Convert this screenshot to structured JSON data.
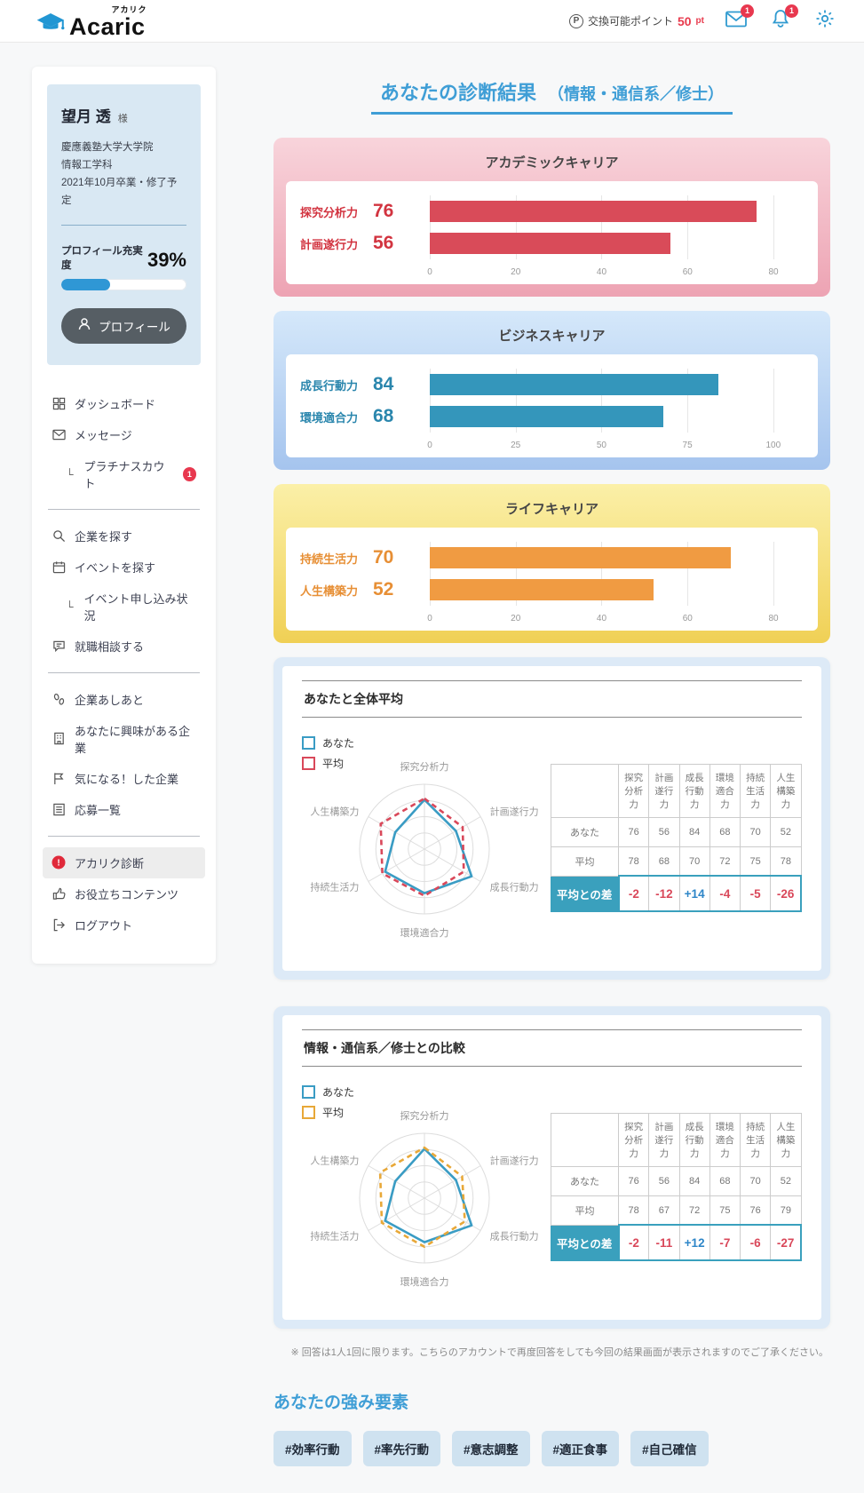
{
  "header": {
    "brand_name": "Acaric",
    "brand_kana": "アカリク",
    "points_label": "交換可能ポイント",
    "points_value": "50",
    "points_unit": "pt",
    "mail_badge": "1",
    "bell_badge": "1"
  },
  "sidebar": {
    "profile": {
      "name": "望月 透",
      "honorific": "様",
      "school_lines": [
        "慶應義塾大学大学院",
        "情報工学科",
        "2021年10月卒業・修了予定"
      ],
      "completion_label": "プロフィール充実度",
      "completion_text": "39%",
      "completion_percent": 39,
      "profile_button": "プロフィール"
    },
    "nav": [
      {
        "icon": "dashboard",
        "label": "ダッシュボード"
      },
      {
        "icon": "mail",
        "label": "メッセージ"
      },
      {
        "icon": "none",
        "label": "プラチナスカウト",
        "sub": true,
        "badge": "1"
      },
      {
        "divider": true
      },
      {
        "icon": "search",
        "label": "企業を探す"
      },
      {
        "icon": "calendar",
        "label": "イベントを探す"
      },
      {
        "icon": "none",
        "label": "イベント申し込み状況",
        "sub": true
      },
      {
        "icon": "chat",
        "label": "就職相談する"
      },
      {
        "divider": true
      },
      {
        "icon": "footprint",
        "label": "企業あしあと"
      },
      {
        "icon": "building",
        "label": "あなたに興味がある企業"
      },
      {
        "icon": "flag",
        "label": "気になる！した企業"
      },
      {
        "icon": "list",
        "label": "応募一覧"
      },
      {
        "divider": true
      },
      {
        "icon": "alert",
        "label": "アカリク診断",
        "active": true
      },
      {
        "icon": "thumb",
        "label": "お役立ちコンテンツ"
      },
      {
        "icon": "logout",
        "label": "ログアウト"
      }
    ]
  },
  "main": {
    "title": "あなたの診断結果",
    "title_suffix": "（情報・通信系／修士）",
    "note": "※ 回答は1人1回に限ります。こちらのアカウントで再度回答をしても今回の結果画面が表示されますのでご了承ください。",
    "strengths_title": "あなたの強み要素",
    "strength_tags": [
      "#効率行動",
      "#率先行動",
      "#意志調整",
      "#適正食事",
      "#自己確信"
    ]
  },
  "chart_data": [
    {
      "type": "bar",
      "title": "アカデミックキャリア",
      "categories": [
        "探究分析力",
        "計画遂行力"
      ],
      "values": [
        76,
        56
      ],
      "ticks": [
        0,
        20,
        40,
        60,
        80
      ],
      "xlim": [
        0,
        86.2
      ],
      "bar_color": "#d94b59",
      "label_color": "#d23440",
      "frame_top": "#f8d4db",
      "frame_bottom": "#eda3b3"
    },
    {
      "type": "bar",
      "title": "ビジネスキャリア",
      "categories": [
        "成長行動力",
        "環境適合力"
      ],
      "values": [
        84,
        68
      ],
      "ticks": [
        0,
        25,
        50,
        75,
        100
      ],
      "xlim": [
        0,
        107.8
      ],
      "bar_color": "#3496bb",
      "label_color": "#2a86ad",
      "frame_top": "#d5e8fa",
      "frame_bottom": "#a5c4ee"
    },
    {
      "type": "bar",
      "title": "ライフキャリア",
      "categories": [
        "持続生活力",
        "人生構築力"
      ],
      "values": [
        70,
        52
      ],
      "ticks": [
        0,
        20,
        40,
        60,
        80
      ],
      "xlim": [
        0,
        86.2
      ],
      "bar_color": "#f09b42",
      "label_color": "#e78f35",
      "frame_top": "#fbf0a8",
      "frame_bottom": "#f0d055"
    },
    {
      "type": "radar",
      "title": "あなたと全体平均",
      "axes": [
        "探究分析力",
        "計画遂行力",
        "成長行動力",
        "環境適合力",
        "持続生活力",
        "人生構築力"
      ],
      "series": [
        {
          "name": "あなた",
          "values": [
            76,
            56,
            84,
            68,
            70,
            52
          ],
          "color": "#3a9cc4",
          "dashed": false
        },
        {
          "name": "平均",
          "values": [
            78,
            68,
            70,
            72,
            75,
            78
          ],
          "color": "#d9485a",
          "dashed": true
        }
      ],
      "scale_max": 100,
      "table": {
        "col_headers": [
          "探究分析力",
          "計画遂行力",
          "成長行動力",
          "環境適合力",
          "持続生活力",
          "人生構築力"
        ],
        "row_labels": [
          "あなた",
          "平均"
        ],
        "rows": [
          [
            76,
            56,
            84,
            68,
            70,
            52
          ],
          [
            78,
            68,
            70,
            72,
            75,
            78
          ]
        ],
        "diff_label": "平均との差",
        "diffs": [
          "-2",
          "-12",
          "+14",
          "-4",
          "-5",
          "-26"
        ]
      }
    },
    {
      "type": "radar",
      "title": "情報・通信系／修士との比較",
      "axes": [
        "探究分析力",
        "計画遂行力",
        "成長行動力",
        "環境適合力",
        "持続生活力",
        "人生構築力"
      ],
      "series": [
        {
          "name": "あなた",
          "values": [
            76,
            56,
            84,
            68,
            70,
            52
          ],
          "color": "#3a9cc4",
          "dashed": false
        },
        {
          "name": "平均",
          "values": [
            78,
            67,
            72,
            75,
            76,
            79
          ],
          "color": "#e8a838",
          "dashed": true
        }
      ],
      "scale_max": 100,
      "table": {
        "col_headers": [
          "探究分析力",
          "計画遂行力",
          "成長行動力",
          "環境適合力",
          "持続生活力",
          "人生構築力"
        ],
        "row_labels": [
          "あなた",
          "平均"
        ],
        "rows": [
          [
            76,
            56,
            84,
            68,
            70,
            52
          ],
          [
            78,
            67,
            72,
            75,
            76,
            79
          ]
        ],
        "diff_label": "平均との差",
        "diffs": [
          "-2",
          "-11",
          "+12",
          "-7",
          "-6",
          "-27"
        ]
      }
    }
  ]
}
